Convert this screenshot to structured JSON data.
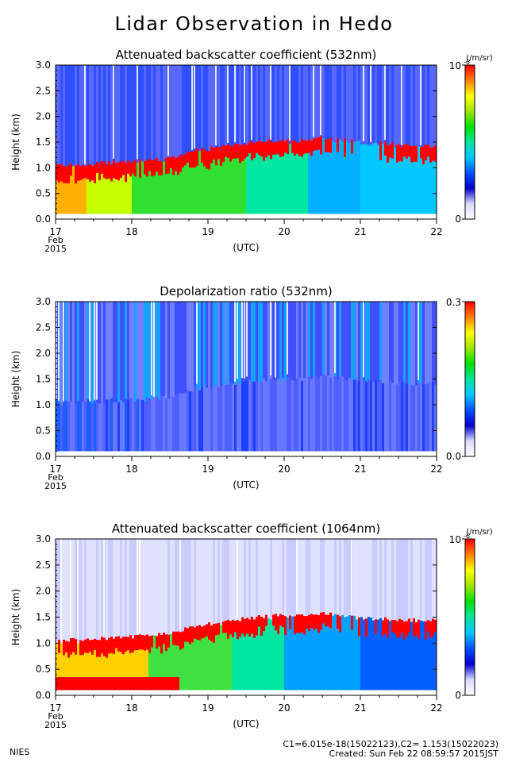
{
  "page": {
    "title": "Lidar Observation in Hedo",
    "org": "NIES",
    "footer_line1": "C1=6.015e-18(15022123),C2= 1.153(15022023)",
    "footer_line2": "Created: Sun Feb 22 08:59:57 2015JST"
  },
  "palette": {
    "stops": [
      "#ffffff",
      "#d8d8ff",
      "#0000d0",
      "#0050ff",
      "#00c8ff",
      "#00e6a0",
      "#00e000",
      "#a0e600",
      "#ffff00",
      "#ff8000",
      "#ff0000"
    ]
  },
  "chart_data": [
    {
      "type": "heatmap",
      "title": "Attenuated backscatter coefficient (532nm)",
      "ylabel": "Height (km)",
      "xlabel": "(UTC)",
      "x_ticks": [
        "17",
        "18",
        "19",
        "20",
        "21",
        "22"
      ],
      "x_sublabel": [
        "Feb",
        "2015"
      ],
      "y_ticks": [
        "0.0",
        "0.5",
        "1.0",
        "1.5",
        "2.0",
        "2.5",
        "3.0"
      ],
      "xlim": [
        17,
        22
      ],
      "ylim": [
        0,
        3
      ],
      "colorbar": {
        "unit": "(/m/sr)",
        "max_label": "10",
        "max_exp": "-6",
        "min_label": "0"
      },
      "cloud_base_km": [
        1.02,
        1.05,
        1.1,
        1.15,
        1.3,
        1.38,
        1.45,
        1.5,
        1.5,
        1.55,
        1.48,
        1.42,
        1.4
      ],
      "cloud_base_x": [
        17.0,
        17.5,
        18.0,
        18.5,
        18.8,
        19.2,
        19.5,
        19.9,
        20.2,
        20.5,
        21.0,
        21.5,
        22.0
      ]
    },
    {
      "type": "heatmap",
      "title": "Depolarization ratio (532nm)",
      "ylabel": "Height (km)",
      "xlabel": "(UTC)",
      "x_ticks": [
        "17",
        "18",
        "19",
        "20",
        "21",
        "22"
      ],
      "x_sublabel": [
        "Feb",
        "2015"
      ],
      "y_ticks": [
        "0.0",
        "0.5",
        "1.0",
        "1.5",
        "2.0",
        "2.5",
        "3.0"
      ],
      "xlim": [
        17,
        22
      ],
      "ylim": [
        0,
        3
      ],
      "colorbar": {
        "unit": "",
        "max_label": "0.3",
        "max_exp": "",
        "min_label": "0.0"
      }
    },
    {
      "type": "heatmap",
      "title": "Attenuated backscatter coefficient (1064nm)",
      "ylabel": "Height (km)",
      "xlabel": "(UTC)",
      "x_ticks": [
        "17",
        "18",
        "19",
        "20",
        "21",
        "22"
      ],
      "x_sublabel": [
        "Feb",
        "2015"
      ],
      "y_ticks": [
        "0.0",
        "0.5",
        "1.0",
        "1.5",
        "2.0",
        "2.5",
        "3.0"
      ],
      "xlim": [
        17,
        22
      ],
      "ylim": [
        0,
        3
      ],
      "colorbar": {
        "unit": "(/m/sr)",
        "max_label": "10",
        "max_exp": "-6",
        "min_label": "0"
      }
    }
  ]
}
